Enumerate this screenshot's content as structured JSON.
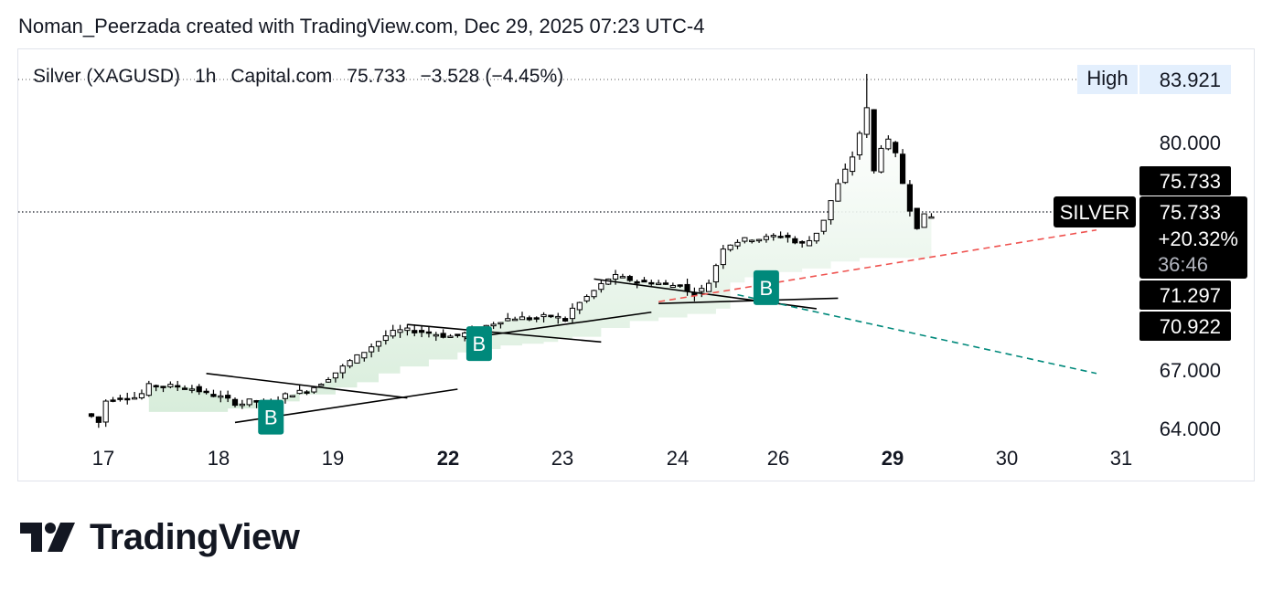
{
  "attribution": "Noman_Peerzada created with TradingView.com, Dec 29, 2025 07:23 UTC-4",
  "legend": {
    "symbol": "Silver (XAGUSD)",
    "interval": "1h",
    "source": "Capital.com",
    "price": "75.733",
    "change": "−3.528",
    "change_pct": "(−4.45%)"
  },
  "brand": {
    "name": "TradingView",
    "logo_icon": "tradingview-logo-icon"
  },
  "price_axis": {
    "high_label": "High",
    "high_value": "83.921",
    "ticks": [
      "80.000",
      "67.000",
      "64.000"
    ],
    "last_price": "75.733",
    "symbol_tag": "SILVER",
    "tag_price": "75.733",
    "tag_change": "+20.32%",
    "tag_countdown": "36:46",
    "level_1": "71.297",
    "level_2": "70.922"
  },
  "colors": {
    "candle_up": "#ffffff",
    "candle_down": "#000000",
    "buy_marker": "#00897b",
    "area_fill": "#d6ecd9",
    "projection_red": "#ef5350",
    "projection_teal": "#00897b",
    "tag_bg": "#000000"
  },
  "chart_data": {
    "type": "candlestick",
    "symbol": "Silver (XAGUSD)",
    "interval": "1h",
    "x_ticks": [
      {
        "label": "17",
        "bold": false
      },
      {
        "label": "18",
        "bold": false
      },
      {
        "label": "19",
        "bold": false
      },
      {
        "label": "22",
        "bold": true
      },
      {
        "label": "23",
        "bold": false
      },
      {
        "label": "24",
        "bold": false
      },
      {
        "label": "26",
        "bold": false
      },
      {
        "label": "29",
        "bold": true
      },
      {
        "label": "30",
        "bold": false
      },
      {
        "label": "31",
        "bold": false
      }
    ],
    "y_ticks": [
      80.0,
      67.0,
      64.0
    ],
    "high": 83.921,
    "last": 75.733,
    "path": [
      [
        0,
        64.5
      ],
      [
        1.5,
        64.0
      ],
      [
        2.1,
        65.2
      ],
      [
        5.0,
        65.5
      ],
      [
        7.0,
        65.4
      ],
      [
        8.5,
        66.1
      ],
      [
        11.0,
        66.1
      ],
      [
        14.0,
        66.0
      ],
      [
        17.0,
        65.6
      ],
      [
        19.0,
        65.4
      ],
      [
        21.0,
        65.0
      ],
      [
        23.0,
        65.3
      ],
      [
        25.0,
        64.8
      ],
      [
        27.0,
        65.5
      ],
      [
        29.0,
        65.7
      ],
      [
        31.0,
        65.9
      ],
      [
        33.0,
        66.4
      ],
      [
        35.0,
        67.0
      ],
      [
        36.5,
        67.5
      ],
      [
        38.0,
        67.9
      ],
      [
        40.0,
        68.5
      ],
      [
        42.0,
        69.1
      ],
      [
        44.0,
        69.3
      ],
      [
        46.0,
        69.2
      ],
      [
        48.0,
        69.1
      ],
      [
        50.0,
        68.9
      ],
      [
        52.0,
        69.0
      ],
      [
        54.0,
        69.3
      ],
      [
        56.0,
        69.6
      ],
      [
        58.0,
        69.9
      ],
      [
        60.0,
        70.0
      ],
      [
        62.0,
        69.9
      ],
      [
        64.0,
        70.1
      ],
      [
        65.5,
        70.0
      ],
      [
        66.0,
        69.5
      ],
      [
        67.5,
        70.5
      ],
      [
        69.0,
        71.0
      ],
      [
        71.0,
        71.7
      ],
      [
        73.0,
        72.4
      ],
      [
        75.0,
        72.2
      ],
      [
        77.0,
        72.0
      ],
      [
        79.0,
        72.0
      ],
      [
        81.0,
        71.8
      ],
      [
        82.5,
        71.9
      ],
      [
        84.0,
        71.3
      ],
      [
        85.5,
        71.6
      ],
      [
        86.5,
        72.0
      ],
      [
        87.5,
        73.0
      ],
      [
        88.5,
        74.0
      ],
      [
        90.0,
        74.3
      ],
      [
        92.0,
        74.5
      ],
      [
        94.0,
        74.5
      ],
      [
        96.0,
        74.7
      ],
      [
        97.5,
        74.6
      ],
      [
        99.0,
        74.1
      ],
      [
        101.0,
        74.5
      ],
      [
        102.5,
        75.6
      ],
      [
        104.0,
        77.2
      ],
      [
        105.5,
        78.4
      ],
      [
        107.0,
        79.6
      ],
      [
        108.0,
        81.5
      ],
      [
        108.6,
        82.0
      ],
      [
        109.0,
        78.6
      ],
      [
        110.0,
        78.1
      ],
      [
        110.6,
        80.1
      ],
      [
        111.2,
        80.3
      ],
      [
        112.0,
        79.7
      ],
      [
        113.0,
        78.9
      ],
      [
        113.7,
        77.2
      ],
      [
        114.5,
        76.2
      ],
      [
        115.5,
        75.2
      ],
      [
        116.5,
        75.8
      ],
      [
        117.5,
        75.733
      ]
    ],
    "support_staircase": [
      [
        8,
        64.6
      ],
      [
        12,
        64.6
      ],
      [
        16,
        64.6
      ],
      [
        20,
        64.8
      ],
      [
        25,
        65.2
      ],
      [
        30,
        65.6
      ],
      [
        35,
        66.0
      ],
      [
        38,
        66.3
      ],
      [
        41,
        66.8
      ],
      [
        44,
        67.2
      ],
      [
        48,
        67.6
      ],
      [
        52,
        68.0
      ],
      [
        55,
        68.2
      ],
      [
        58,
        68.4
      ],
      [
        61,
        68.5
      ],
      [
        64,
        68.6
      ],
      [
        66,
        68.8
      ],
      [
        68,
        68.9
      ],
      [
        72,
        69.4
      ],
      [
        76,
        69.8
      ],
      [
        80,
        70.0
      ],
      [
        84,
        70.2
      ],
      [
        88,
        70.5
      ],
      [
        90,
        72.0
      ],
      [
        92,
        72.3
      ],
      [
        96,
        72.6
      ],
      [
        100,
        72.8
      ],
      [
        104,
        73.2
      ],
      [
        108,
        73.4
      ],
      [
        112,
        73.4
      ],
      [
        117.5,
        73.4
      ]
    ],
    "buy_markers": [
      {
        "label": "B",
        "bar": 25,
        "price": 64.2
      },
      {
        "label": "B",
        "bar": 54,
        "price": 68.4
      },
      {
        "label": "B",
        "bar": 94,
        "price": 71.6
      }
    ],
    "trendlines": [
      {
        "from": [
          16,
          66.8
        ],
        "to": [
          44,
          65.4
        ]
      },
      {
        "from": [
          20,
          64.0
        ],
        "to": [
          51,
          65.9
        ]
      },
      {
        "from": [
          44,
          69.6
        ],
        "to": [
          71,
          68.6
        ]
      },
      {
        "from": [
          52,
          68.8
        ],
        "to": [
          78,
          70.3
        ]
      },
      {
        "from": [
          70,
          72.2
        ],
        "to": [
          101,
          70.5
        ]
      },
      {
        "from": [
          79,
          70.8
        ],
        "to": [
          104,
          71.1
        ]
      }
    ],
    "projections": [
      {
        "color": "red",
        "from": [
          79,
          70.9
        ],
        "to": [
          140,
          75.0
        ]
      },
      {
        "color": "teal",
        "from": [
          90,
          71.3
        ],
        "to": [
          140,
          66.8
        ]
      }
    ],
    "levels": [
      71.297,
      70.922
    ]
  }
}
